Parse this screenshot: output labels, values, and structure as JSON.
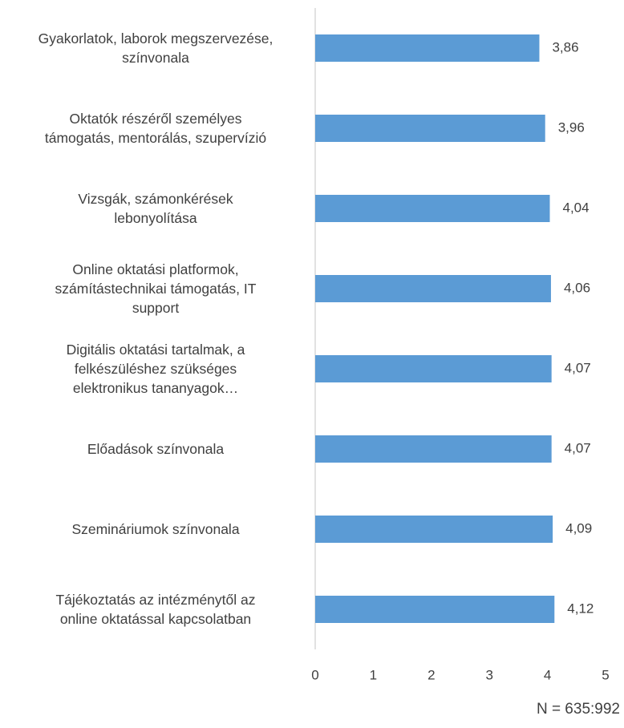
{
  "chart_data": {
    "type": "barh",
    "categories": [
      "Gyakorlatok, laborok megszervezése,\nszínvonala",
      "Oktatók részéről személyes\ntámogatás, mentorálás, szupervízió",
      "Vizsgák, számonkérések\nlebonyolítása",
      "Online oktatási platformok,\nszámítástechnikai támogatás, IT\nsupport",
      "Digitális oktatási tartalmak, a\nfelkészüléshez szükséges\nelektronikus tananyagok…",
      "Előadások színvonala",
      "Szemináriumok színvonala",
      "Tájékoztatás az intézménytől az\nonline oktatással kapcsolatban"
    ],
    "values": [
      3.86,
      3.96,
      4.04,
      4.06,
      4.07,
      4.07,
      4.09,
      4.12
    ],
    "value_labels": [
      "3,86",
      "3,96",
      "4,04",
      "4,06",
      "4,07",
      "4,07",
      "4,09",
      "4,12"
    ],
    "color": "#5b9bd5",
    "xlim": [
      0,
      5
    ],
    "xticks": [
      0,
      1,
      2,
      3,
      4,
      5
    ],
    "grid": false,
    "annotation": "N = 635:992"
  }
}
